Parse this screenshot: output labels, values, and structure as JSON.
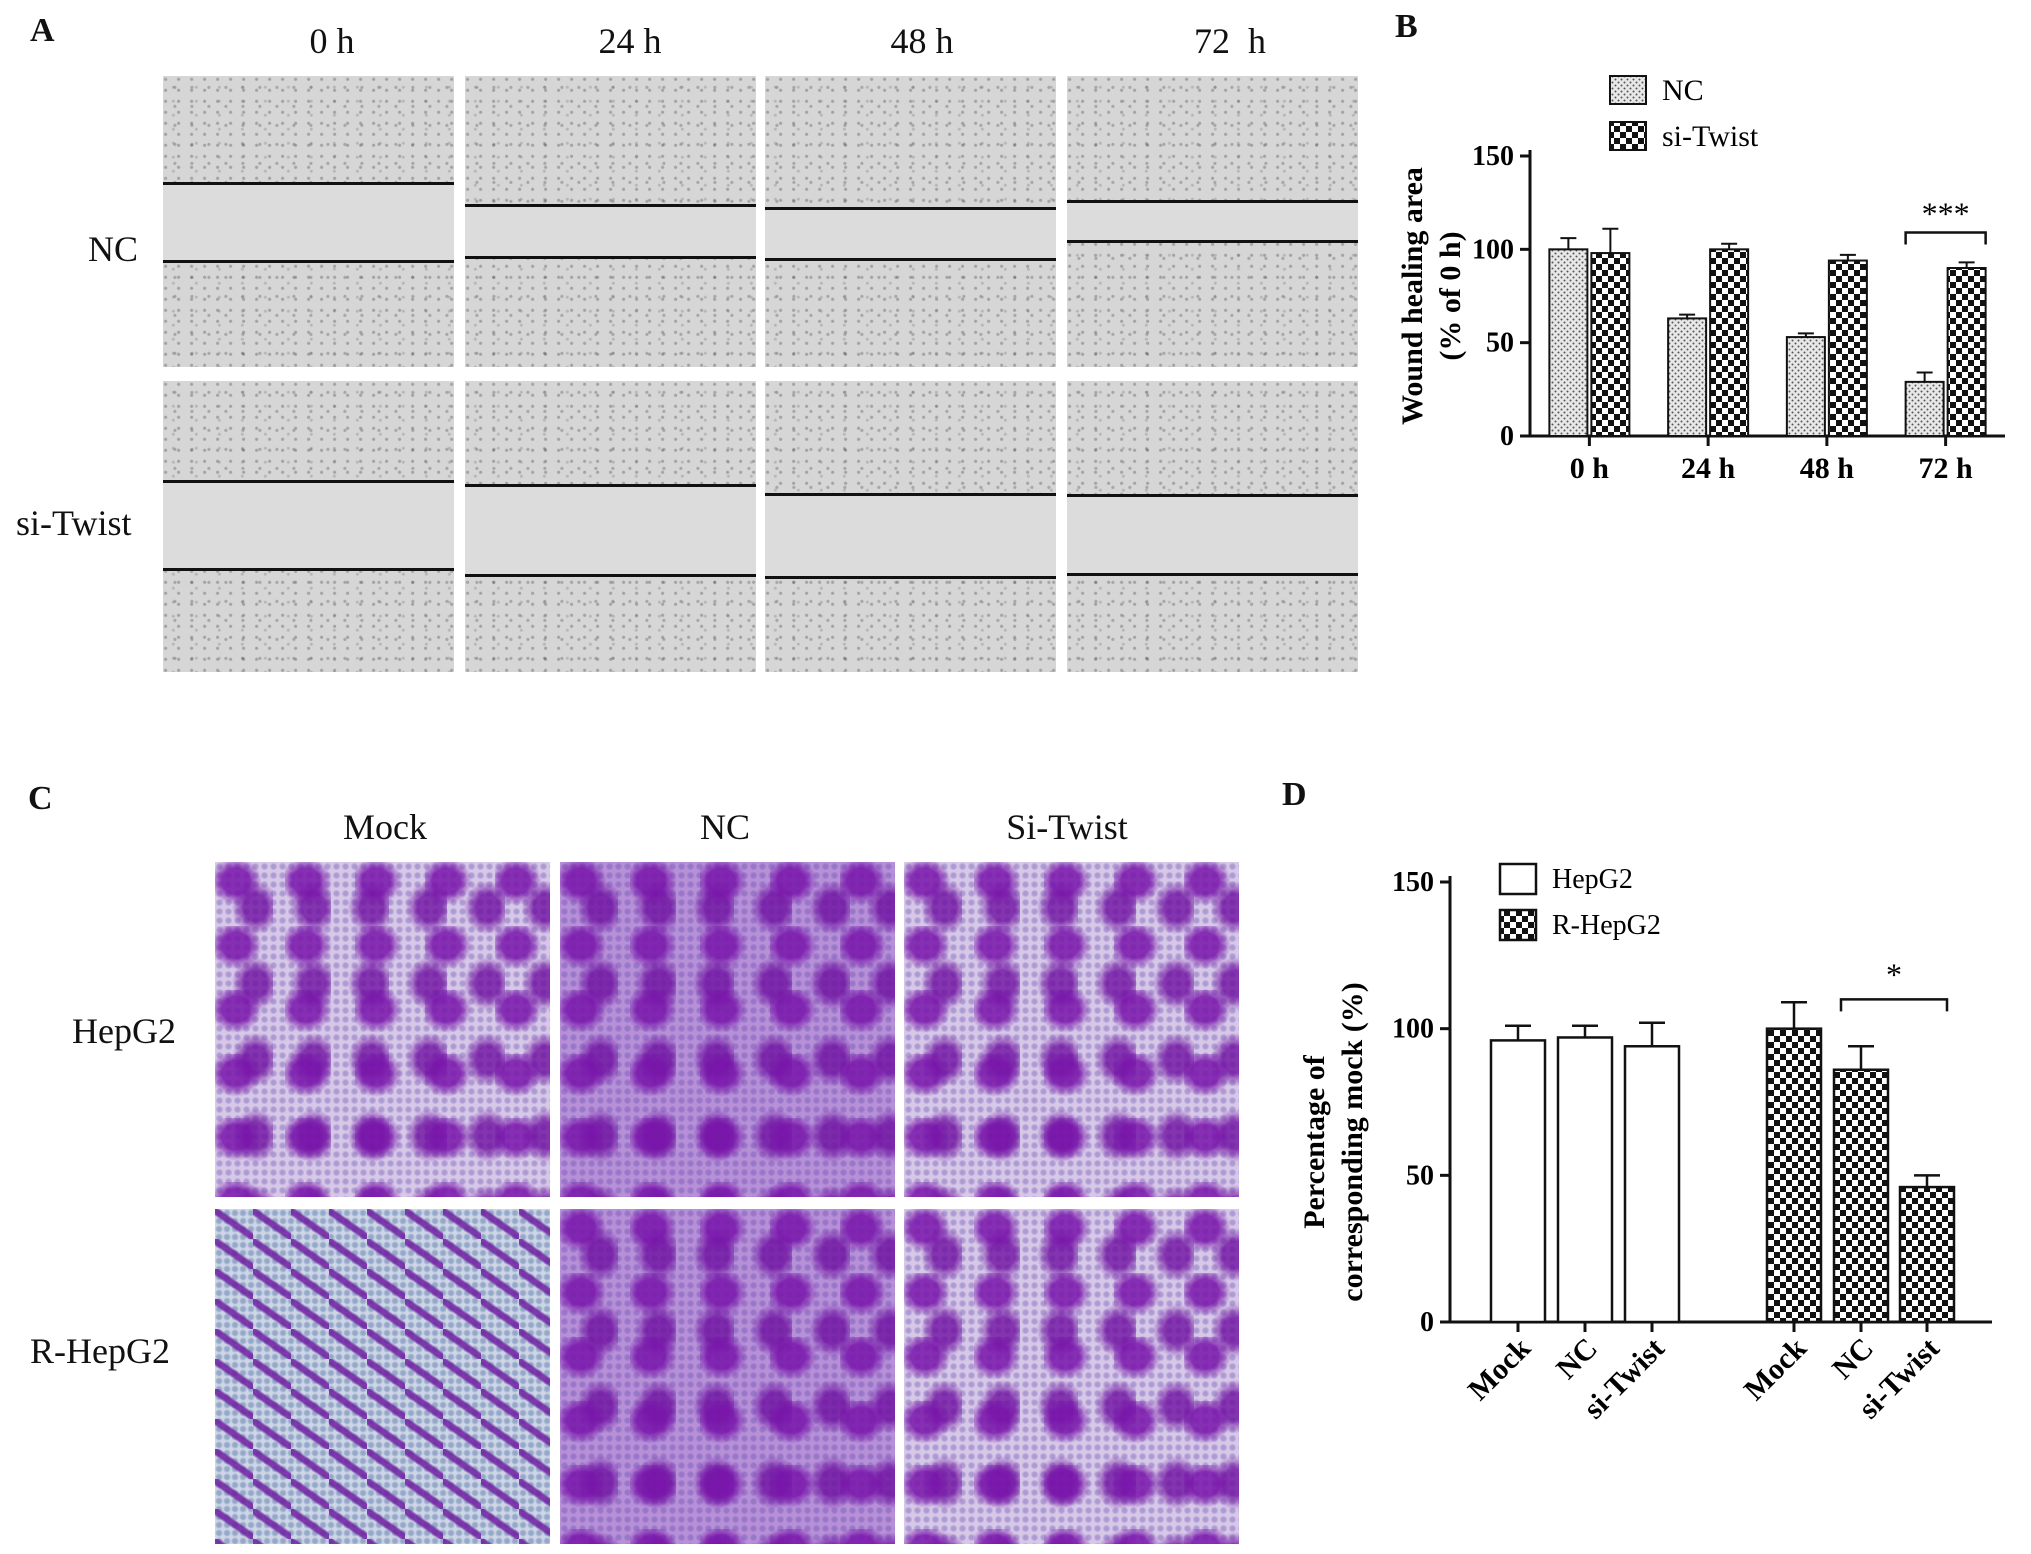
{
  "panels": {
    "a": "A",
    "b": "B",
    "c": "C",
    "d": "D"
  },
  "panel_a": {
    "columns": [
      "0 h",
      "24 h",
      "48 h",
      "72  h"
    ],
    "rows": [
      "NC",
      "si-Twist"
    ]
  },
  "panel_c": {
    "columns": [
      "Mock",
      "NC",
      "Si-Twist"
    ],
    "rows": [
      "HepG2",
      "R-HepG2"
    ]
  },
  "chart_data": [
    {
      "type": "bar",
      "panel": "B",
      "categories": [
        "0 h",
        "24 h",
        "48 h",
        "72 h"
      ],
      "series": [
        {
          "name": "NC",
          "values": [
            100,
            63,
            53,
            29
          ],
          "errors": [
            6,
            2,
            2,
            5
          ],
          "pattern": "dots"
        },
        {
          "name": "si-Twist",
          "values": [
            98,
            100,
            94,
            90
          ],
          "errors": [
            13,
            3,
            3,
            3
          ],
          "pattern": "checker"
        }
      ],
      "ylabel": "Wound healing area\n(% of 0 h)",
      "ylim": [
        0,
        150
      ],
      "yticks": [
        0,
        50,
        100,
        150
      ],
      "annotations": [
        {
          "text": "***",
          "category": "72 h"
        }
      ],
      "legend": "top-left",
      "grid": false
    },
    {
      "type": "bar",
      "panel": "D",
      "categories": [
        "Mock",
        "NC",
        "si-Twist",
        "Mock",
        "NC",
        "si-Twist"
      ],
      "series": [
        {
          "name": "HepG2",
          "values": [
            96,
            97,
            94,
            null,
            null,
            null
          ],
          "errors": [
            5,
            4,
            8,
            null,
            null,
            null
          ],
          "pattern": "white"
        },
        {
          "name": "R-HepG2",
          "values": [
            null,
            null,
            null,
            100,
            86,
            46
          ],
          "errors": [
            null,
            null,
            null,
            9,
            8,
            4
          ],
          "pattern": "checker"
        }
      ],
      "ylabel": "Percentage of\ncorresponding mock (%)",
      "ylim": [
        0,
        150
      ],
      "yticks": [
        0,
        50,
        100,
        150
      ],
      "annotations": [
        {
          "text": "*",
          "between": [
            "NC",
            "si-Twist"
          ]
        }
      ],
      "legend": "top-left",
      "grid": false
    }
  ]
}
